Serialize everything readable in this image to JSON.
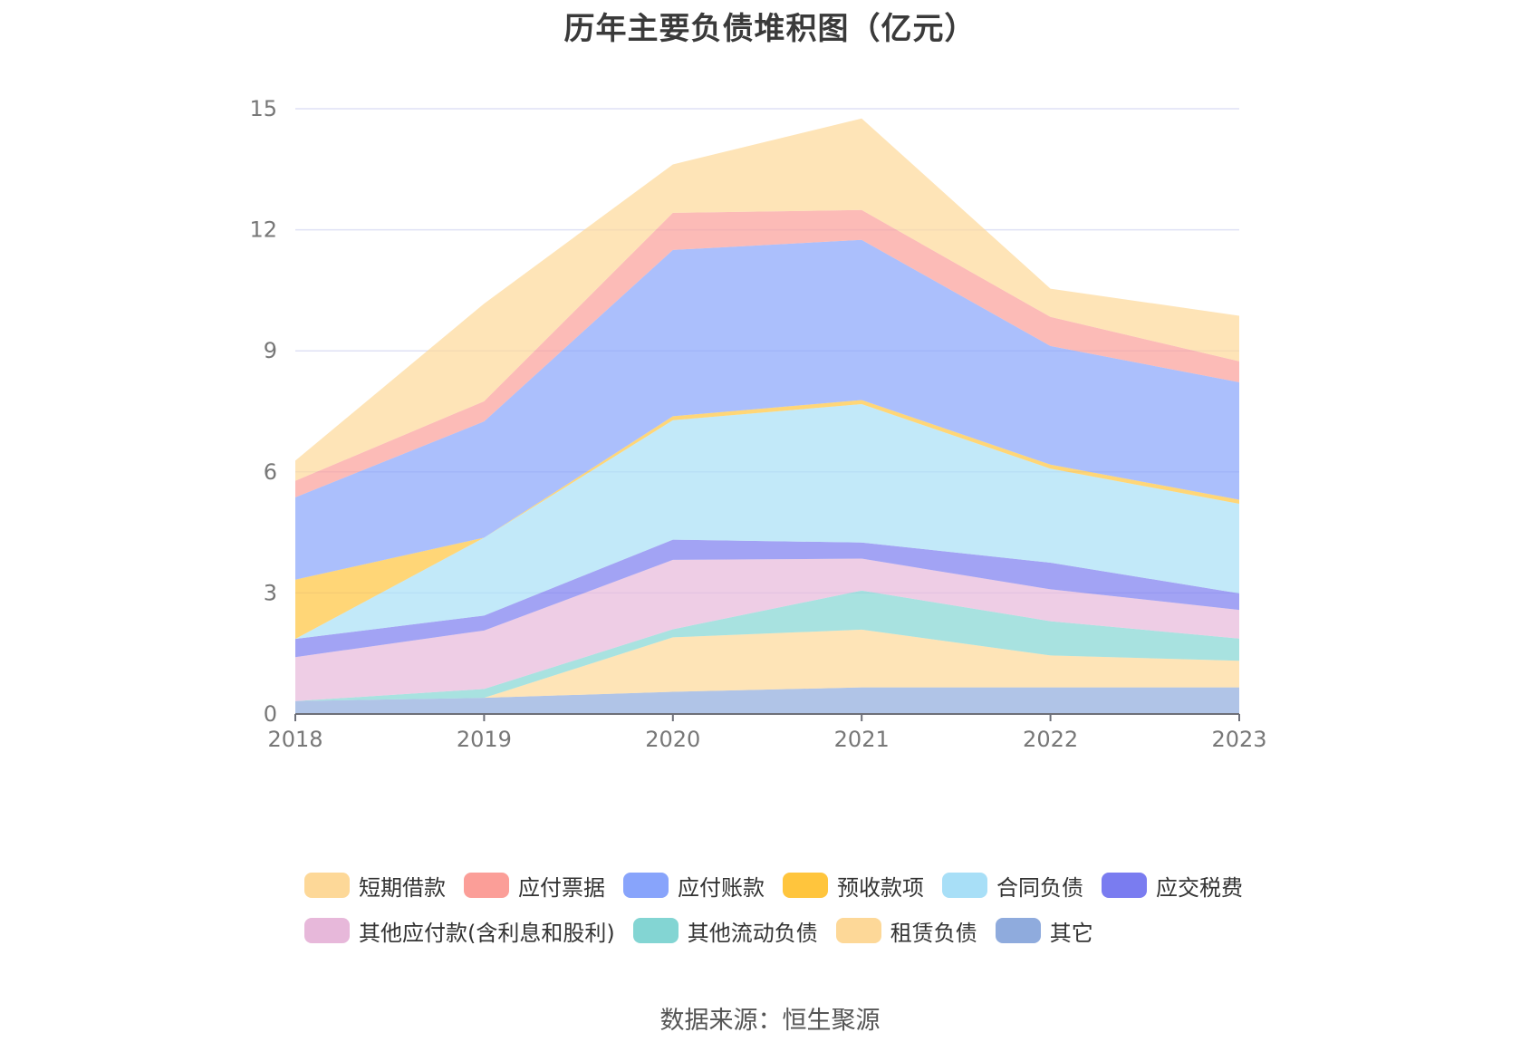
{
  "title": "历年主要负债堆积图（亿元）",
  "source": "数据来源：恒生聚源",
  "chart_data": {
    "type": "area",
    "stacked": true,
    "title": "历年主要负债堆积图（亿元）",
    "x": [
      "2018",
      "2019",
      "2020",
      "2021",
      "2022",
      "2023"
    ],
    "ylim": [
      0,
      15
    ],
    "yticks": [
      "0",
      "3",
      "6",
      "9",
      "12",
      "15"
    ],
    "grid": true,
    "legend_position": "bottom",
    "series": [
      {
        "name": "其它",
        "color": "#8fabdd",
        "values": [
          0.32,
          0.4,
          0.55,
          0.66,
          0.66,
          0.66
        ]
      },
      {
        "name": "租赁负债",
        "color": "#fdd898",
        "values": [
          0.0,
          0.0,
          1.35,
          1.43,
          0.79,
          0.66
        ]
      },
      {
        "name": "其他流动负债",
        "color": "#83d5d3",
        "values": [
          0.0,
          0.22,
          0.2,
          0.97,
          0.85,
          0.55
        ]
      },
      {
        "name": "其他应付款(含利息和股利)",
        "color": "#e7b8da",
        "values": [
          1.09,
          1.45,
          1.72,
          0.79,
          0.79,
          0.71
        ]
      },
      {
        "name": "应交税费",
        "color": "#7a7cf0",
        "values": [
          0.45,
          0.37,
          0.5,
          0.4,
          0.66,
          0.41
        ]
      },
      {
        "name": "合同负债",
        "color": "#a8dff7",
        "values": [
          0.0,
          1.93,
          2.96,
          3.43,
          2.33,
          2.22
        ]
      },
      {
        "name": "预收款项",
        "color": "#ffc53d",
        "values": [
          1.47,
          0.0,
          0.1,
          0.1,
          0.1,
          0.1
        ]
      },
      {
        "name": "应付账款",
        "color": "#88a4fb",
        "values": [
          2.04,
          2.88,
          4.12,
          3.97,
          2.94,
          2.91
        ]
      },
      {
        "name": "应付票据",
        "color": "#fb9e98",
        "values": [
          0.41,
          0.5,
          0.92,
          0.74,
          0.72,
          0.52
        ]
      },
      {
        "name": "短期借款",
        "color": "#fdd898",
        "values": [
          0.5,
          2.42,
          1.2,
          2.27,
          0.7,
          1.13
        ]
      }
    ]
  },
  "legend": {
    "row1": [
      {
        "name": "短期借款",
        "color": "#fdd898"
      },
      {
        "name": "应付票据",
        "color": "#fb9e98"
      },
      {
        "name": "应付账款",
        "color": "#88a4fb"
      },
      {
        "name": "预收款项",
        "color": "#ffc53d"
      },
      {
        "name": "合同负债",
        "color": "#a8dff7"
      },
      {
        "name": "应交税费",
        "color": "#7a7cf0"
      }
    ],
    "row2": [
      {
        "name": "其他应付款(含利息和股利)",
        "color": "#e7b8da"
      },
      {
        "name": "其他流动负债",
        "color": "#83d5d3"
      },
      {
        "name": "租赁负债",
        "color": "#fdd898"
      },
      {
        "name": "其它",
        "color": "#8fabdd"
      }
    ]
  }
}
